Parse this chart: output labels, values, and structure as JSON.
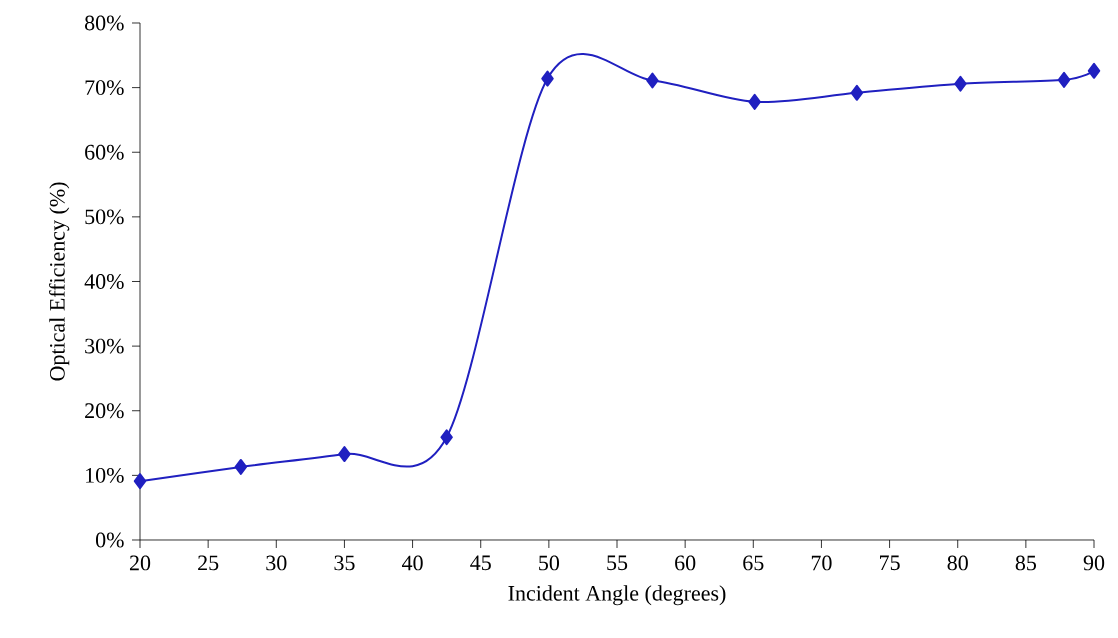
{
  "chart_data": {
    "type": "line",
    "xlabel": "Incident Angle (degrees)",
    "ylabel": "Optical Efficiency (%)",
    "x": [
      20.0,
      27.4,
      35.0,
      42.5,
      49.9,
      57.6,
      65.1,
      72.6,
      80.2,
      87.8,
      90.0
    ],
    "series": [
      {
        "color": "#2020c0",
        "values": [
          9.1,
          11.3,
          13.3,
          15.9,
          71.4,
          71.1,
          67.8,
          69.2,
          70.6,
          71.2,
          72.6
        ]
      }
    ],
    "xlim": [
      20,
      90
    ],
    "xticks": [
      20,
      25,
      30,
      35,
      40,
      45,
      50,
      55,
      60,
      65,
      70,
      75,
      80,
      85,
      90
    ],
    "ylim": [
      0,
      80
    ],
    "yticks": [
      {
        "value": 0,
        "label": "0%"
      },
      {
        "value": 10,
        "label": "10%"
      },
      {
        "value": 20,
        "label": "20%"
      },
      {
        "value": 30,
        "label": "30%"
      },
      {
        "value": 40,
        "label": "40%"
      },
      {
        "value": 50,
        "label": "50%"
      },
      {
        "value": 60,
        "label": "60%"
      },
      {
        "value": 70,
        "label": "70%"
      },
      {
        "value": 80,
        "label": "80%"
      }
    ],
    "grid": false,
    "marker": "diamond",
    "line_style": "solid"
  }
}
